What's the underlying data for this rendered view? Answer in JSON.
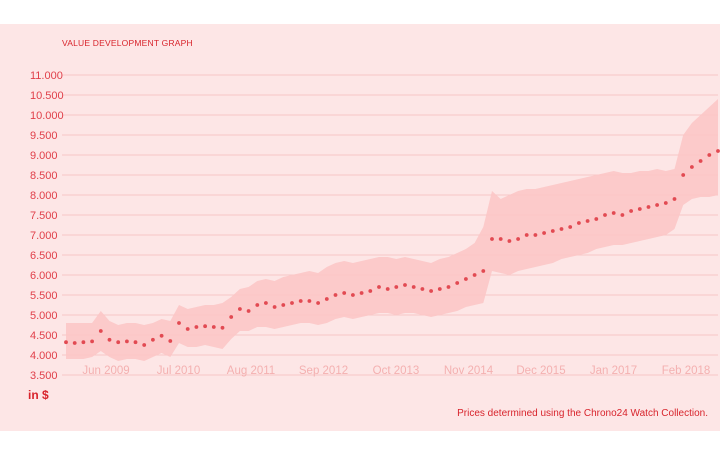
{
  "chart_data": {
    "type": "line",
    "title": "VALUE DEVELOPMENT GRAPH",
    "ylabel": "in $",
    "note": "Prices determined using the Chrono24 Watch Collection.",
    "ylim": [
      3500,
      11000
    ],
    "yticks": [
      {
        "value": 11000,
        "label": "11.000"
      },
      {
        "value": 10500,
        "label": "10.500"
      },
      {
        "value": 10000,
        "label": "10.000"
      },
      {
        "value": 9500,
        "label": "9.500"
      },
      {
        "value": 9000,
        "label": "9.000"
      },
      {
        "value": 8500,
        "label": "8.500"
      },
      {
        "value": 8000,
        "label": "8.000"
      },
      {
        "value": 7500,
        "label": "7.500"
      },
      {
        "value": 7000,
        "label": "7.000"
      },
      {
        "value": 6500,
        "label": "6.500"
      },
      {
        "value": 6000,
        "label": "6.000"
      },
      {
        "value": 5500,
        "label": "5.500"
      },
      {
        "value": 5000,
        "label": "5.000"
      },
      {
        "value": 4500,
        "label": "4.500"
      },
      {
        "value": 4000,
        "label": "4.000"
      },
      {
        "value": 3500,
        "label": "3.500"
      }
    ],
    "xticks": [
      "Jun 2009",
      "Jul 2010",
      "Aug 2011",
      "Sep 2012",
      "Oct 2013",
      "Nov 2014",
      "Dec 2015",
      "Jan 2017",
      "Feb 2018"
    ],
    "grid": true,
    "series": [
      {
        "values": [
          4320,
          4300,
          4320,
          4340,
          4600,
          4380,
          4320,
          4340,
          4320,
          4250,
          4380,
          4480,
          4350,
          4800,
          4650,
          4700,
          4720,
          4700,
          4680,
          4950,
          5150,
          5100,
          5250,
          5300,
          5200,
          5250,
          5300,
          5350,
          5350,
          5300,
          5400,
          5500,
          5550,
          5500,
          5550,
          5600,
          5700,
          5650,
          5700,
          5750,
          5700,
          5650,
          5600,
          5650,
          5700,
          5800,
          5900,
          6000,
          6100,
          6900,
          6900,
          6850,
          6900,
          7000,
          7000,
          7050,
          7100,
          7150,
          7200,
          7300,
          7350,
          7400,
          7500,
          7550,
          7500,
          7600,
          7650,
          7700,
          7750,
          7800,
          7900,
          8500,
          8700,
          8850,
          9000,
          9100
        ]
      }
    ],
    "band": {
      "upper": [
        4800,
        4800,
        4800,
        4800,
        5100,
        4850,
        4750,
        4800,
        4800,
        4750,
        4800,
        4900,
        4850,
        5250,
        5150,
        5200,
        5250,
        5250,
        5300,
        5450,
        5650,
        5700,
        5850,
        5900,
        5850,
        5950,
        6000,
        6050,
        6100,
        6050,
        6200,
        6300,
        6350,
        6300,
        6350,
        6400,
        6450,
        6450,
        6400,
        6450,
        6400,
        6350,
        6300,
        6400,
        6450,
        6550,
        6650,
        6800,
        7200,
        8100,
        7900,
        8000,
        8100,
        8150,
        8150,
        8200,
        8250,
        8300,
        8350,
        8400,
        8450,
        8500,
        8550,
        8600,
        8550,
        8550,
        8600,
        8600,
        8650,
        8600,
        8650,
        9500,
        9800,
        10000,
        10200,
        10400
      ],
      "lower": [
        3900,
        3900,
        3900,
        3950,
        4100,
        3950,
        3850,
        3900,
        3900,
        3850,
        3950,
        4050,
        3950,
        4300,
        4200,
        4200,
        4250,
        4200,
        4150,
        4400,
        4600,
        4600,
        4700,
        4700,
        4650,
        4700,
        4750,
        4800,
        4800,
        4750,
        4800,
        4900,
        4950,
        4900,
        4950,
        5000,
        5050,
        5050,
        5000,
        5050,
        5050,
        5000,
        4950,
        5000,
        5050,
        5100,
        5200,
        5250,
        5300,
        6100,
        6050,
        6000,
        6100,
        6150,
        6200,
        6250,
        6300,
        6400,
        6450,
        6500,
        6550,
        6650,
        6700,
        6750,
        6750,
        6800,
        6850,
        6900,
        6950,
        7000,
        7150,
        7750,
        7900,
        7950,
        7950,
        8000
      ]
    }
  },
  "colors": {
    "panel_bg": "#fde6e6",
    "band": "#fcc4c4",
    "gridline": "#f6bcbc",
    "dots": "#e24a52",
    "accent": "#d8242c",
    "ytick_text": "#e0404a",
    "xtick_text": "#f4b0b0"
  }
}
